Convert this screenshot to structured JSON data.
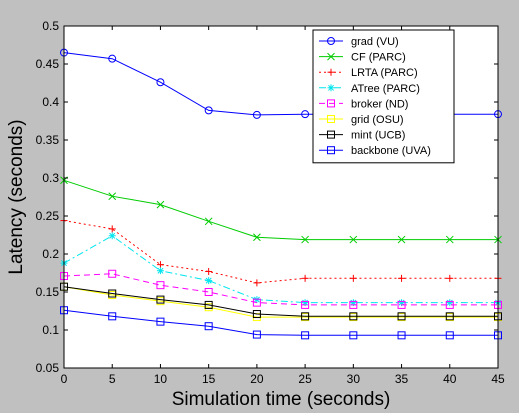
{
  "chart_data": {
    "type": "line",
    "title": "",
    "xlabel": "Simulation time (seconds)",
    "ylabel": "Latency (seconds)",
    "xlim": [
      0,
      45
    ],
    "ylim": [
      0.05,
      0.5
    ],
    "xticks": [
      "0",
      "5",
      "10",
      "15",
      "20",
      "25",
      "30",
      "35",
      "40",
      "45"
    ],
    "yticks": [
      "0.05",
      "0.1",
      "0.15",
      "0.2",
      "0.25",
      "0.3",
      "0.35",
      "0.4",
      "0.45",
      "0.5"
    ],
    "x": [
      0,
      5,
      10,
      15,
      20,
      25,
      30,
      35,
      40,
      45
    ],
    "grid": false,
    "legend": "top-right",
    "background_color": "#c0c0c0",
    "plot_background_color": "#ffffff",
    "series": [
      {
        "name": "grad (VU)",
        "color": "#0000ff",
        "line_style": "solid",
        "marker": "circle",
        "values": [
          0.465,
          0.457,
          0.426,
          0.389,
          0.383,
          0.384,
          0.384,
          0.384,
          0.384,
          0.384
        ]
      },
      {
        "name": "CF (PARC)",
        "color": "#00cc00",
        "line_style": "solid",
        "marker": "x",
        "values": [
          0.297,
          0.276,
          0.265,
          0.243,
          0.222,
          0.219,
          0.219,
          0.219,
          0.219,
          0.219
        ]
      },
      {
        "name": "LRTA (PARC)",
        "color": "#ff0000",
        "line_style": "dotted",
        "marker": "plus",
        "values": [
          0.244,
          0.233,
          0.186,
          0.177,
          0.162,
          0.168,
          0.168,
          0.168,
          0.168,
          0.168
        ]
      },
      {
        "name": "ATree (PARC)",
        "color": "#00e5ee",
        "line_style": "dashdot",
        "marker": "star",
        "values": [
          0.188,
          0.224,
          0.178,
          0.165,
          0.14,
          0.136,
          0.136,
          0.136,
          0.136,
          0.136
        ]
      },
      {
        "name": "broker (ND)",
        "color": "#ff00ff",
        "line_style": "dashed",
        "marker": "square",
        "values": [
          0.171,
          0.174,
          0.159,
          0.15,
          0.136,
          0.133,
          0.133,
          0.133,
          0.133,
          0.133
        ]
      },
      {
        "name": "grid (OSU)",
        "color": "#ffff00",
        "line_style": "solid",
        "marker": "square",
        "values": [
          0.157,
          0.146,
          0.138,
          0.13,
          0.117,
          0.117,
          0.117,
          0.117,
          0.117,
          0.117
        ]
      },
      {
        "name": "mint (UCB)",
        "color": "#000000",
        "line_style": "solid",
        "marker": "square",
        "values": [
          0.157,
          0.148,
          0.14,
          0.133,
          0.121,
          0.118,
          0.118,
          0.118,
          0.118,
          0.118
        ]
      },
      {
        "name": "backbone (UVA)",
        "color": "#0000ff",
        "line_style": "solid",
        "marker": "square",
        "values": [
          0.126,
          0.118,
          0.111,
          0.105,
          0.094,
          0.093,
          0.093,
          0.093,
          0.093,
          0.093
        ]
      }
    ]
  }
}
